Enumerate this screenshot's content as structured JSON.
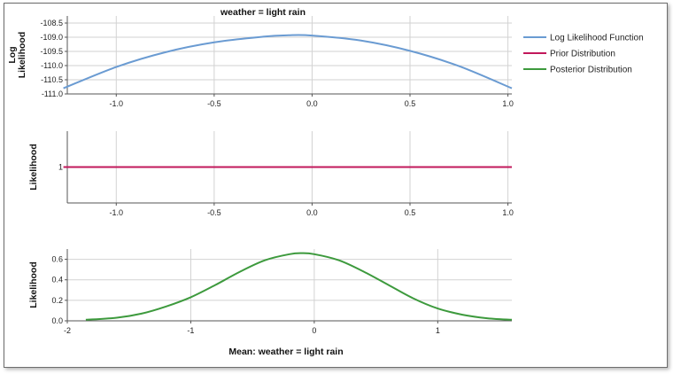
{
  "chart_data": [
    {
      "type": "line",
      "title": "weather = light rain",
      "ylabel": "Log Likelihood",
      "ylabel_lines": [
        "Log",
        "Likelihood"
      ],
      "xlim": [
        -1.25,
        1.02
      ],
      "ylim": [
        -111.0,
        -108.25
      ],
      "xticks": [
        -1.0,
        -0.5,
        0.0,
        0.5,
        1.0
      ],
      "xtick_labels": [
        "-1.0",
        "-0.5",
        "0.0",
        "0.5",
        "1.0"
      ],
      "yticks": [
        -111.0,
        -110.5,
        -110.0,
        -109.5,
        -109.0,
        -108.5
      ],
      "ytick_labels": [
        "-111.0",
        "-110.5",
        "-110.0",
        "-109.5",
        "-109.0",
        "-108.5"
      ],
      "series": [
        {
          "name": "Log Likelihood Function",
          "color": "#6a9bd2",
          "x": [
            -1.27,
            -1.0,
            -0.75,
            -0.5,
            -0.25,
            -0.12,
            0.0,
            0.25,
            0.5,
            0.75,
            1.02
          ],
          "y": [
            -110.8,
            -110.05,
            -109.53,
            -109.18,
            -108.98,
            -108.93,
            -108.94,
            -109.12,
            -109.48,
            -110.02,
            -110.8
          ]
        }
      ]
    },
    {
      "type": "line",
      "ylabel": "Likelihood",
      "xlim": [
        -1.25,
        1.02
      ],
      "ylim": [
        0.0,
        2.0
      ],
      "xticks": [
        -1.0,
        -0.5,
        0.0,
        0.5,
        1.0
      ],
      "xtick_labels": [
        "-1.0",
        "-0.5",
        "0.0",
        "0.5",
        "1.0"
      ],
      "yticks": [
        1
      ],
      "ytick_labels": [
        "1"
      ],
      "series": [
        {
          "name": "Prior Distribution",
          "color": "#c2185b",
          "x": [
            -1.27,
            1.02
          ],
          "y": [
            1,
            1
          ]
        }
      ]
    },
    {
      "type": "line",
      "xlabel": "Mean: weather = light rain",
      "ylabel": "Likelihood",
      "xlim": [
        -2.0,
        1.6
      ],
      "ylim": [
        0.0,
        0.7
      ],
      "xticks": [
        -2,
        -1,
        0,
        1
      ],
      "xtick_labels": [
        "-2",
        "-1",
        "0",
        "1"
      ],
      "yticks": [
        0.0,
        0.2,
        0.4,
        0.6
      ],
      "ytick_labels": [
        "0.0",
        "0.2",
        "0.4",
        "0.6"
      ],
      "series": [
        {
          "name": "Posterior Distribution",
          "color": "#3d9a3d",
          "x": [
            -1.85,
            -1.6,
            -1.4,
            -1.2,
            -1.0,
            -0.8,
            -0.6,
            -0.4,
            -0.2,
            -0.1,
            0.0,
            0.2,
            0.4,
            0.6,
            0.8,
            1.0,
            1.2,
            1.4,
            1.6
          ],
          "y": [
            0.01,
            0.03,
            0.07,
            0.14,
            0.23,
            0.35,
            0.48,
            0.59,
            0.65,
            0.66,
            0.65,
            0.59,
            0.48,
            0.35,
            0.22,
            0.12,
            0.06,
            0.025,
            0.01
          ]
        }
      ]
    }
  ],
  "legend": [
    {
      "label": "Log Likelihood Function",
      "color": "#6a9bd2"
    },
    {
      "label": "Prior Distribution",
      "color": "#c2185b"
    },
    {
      "label": "Posterior Distribution",
      "color": "#3d9a3d"
    }
  ]
}
